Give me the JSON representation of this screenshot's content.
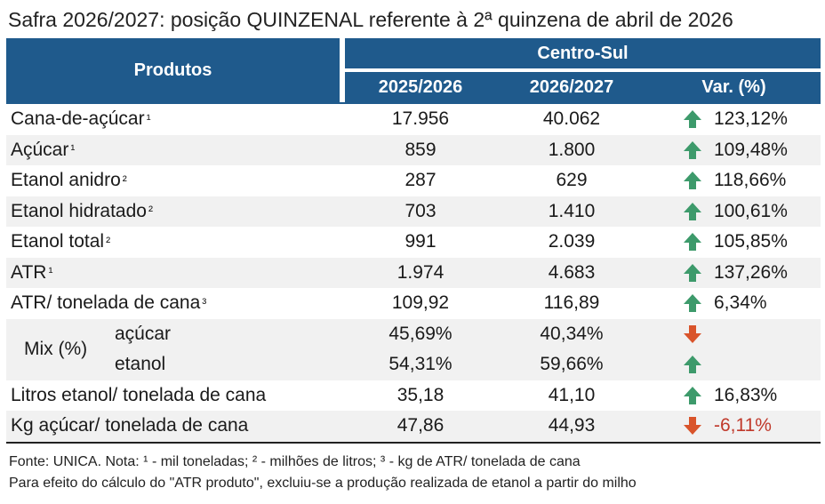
{
  "title": "Safra 2026/2027: posição QUINZENAL referente à 2ª quinzena de abril de 2026",
  "header": {
    "products": "Produtos",
    "region": "Centro-Sul",
    "col1": "2025/2026",
    "col2": "2026/2027",
    "col3": "Var. (%)"
  },
  "rows": [
    {
      "label": "Cana-de-açúcar",
      "note": "¹",
      "v1": "17.956",
      "v2": "40.062",
      "dir": "up",
      "pct": "123,12%"
    },
    {
      "label": "Açúcar",
      "note": "¹",
      "v1": "859",
      "v2": "1.800",
      "dir": "up",
      "pct": "109,48%"
    },
    {
      "label": "Etanol anidro",
      "note": "²",
      "v1": "287",
      "v2": "629",
      "dir": "up",
      "pct": "118,66%"
    },
    {
      "label": "Etanol hidratado",
      "note": "²",
      "v1": "703",
      "v2": "1.410",
      "dir": "up",
      "pct": "100,61%"
    },
    {
      "label": "Etanol total",
      "note": "²",
      "v1": "991",
      "v2": "2.039",
      "dir": "up",
      "pct": "105,85%"
    },
    {
      "label": "ATR",
      "note": "¹",
      "v1": "1.974",
      "v2": "4.683",
      "dir": "up",
      "pct": "137,26%"
    },
    {
      "label": "ATR/ tonelada de cana",
      "note": "³",
      "v1": "109,92",
      "v2": "116,89",
      "dir": "up",
      "pct": "6,34%"
    }
  ],
  "mix": {
    "label": "Mix (%)",
    "sugar": {
      "label": "açúcar",
      "v1": "45,69%",
      "v2": "40,34%",
      "dir": "down"
    },
    "ethanol": {
      "label": "etanol",
      "v1": "54,31%",
      "v2": "59,66%",
      "dir": "up"
    }
  },
  "rows2": [
    {
      "label": "Litros etanol/ tonelada de cana",
      "v1": "35,18",
      "v2": "41,10",
      "dir": "up",
      "pct": "16,83%"
    },
    {
      "label": "Kg açúcar/ tonelada de cana",
      "v1": "47,86",
      "v2": "44,93",
      "dir": "down",
      "pct": "-6,11%"
    }
  ],
  "footer": {
    "line1": "Fonte: UNICA. Nota: ¹ - mil toneladas; ² - milhões de litros; ³ - kg de ATR/ tonelada de cana",
    "line2": "Para efeito do cálculo do \"ATR produto\", excluiu-se a produção realizada de etanol a partir do milho"
  },
  "colors": {
    "header": "#1f5a8c",
    "up": "#3d9a6b",
    "down": "#d9542b",
    "negative": "#c0392b"
  }
}
